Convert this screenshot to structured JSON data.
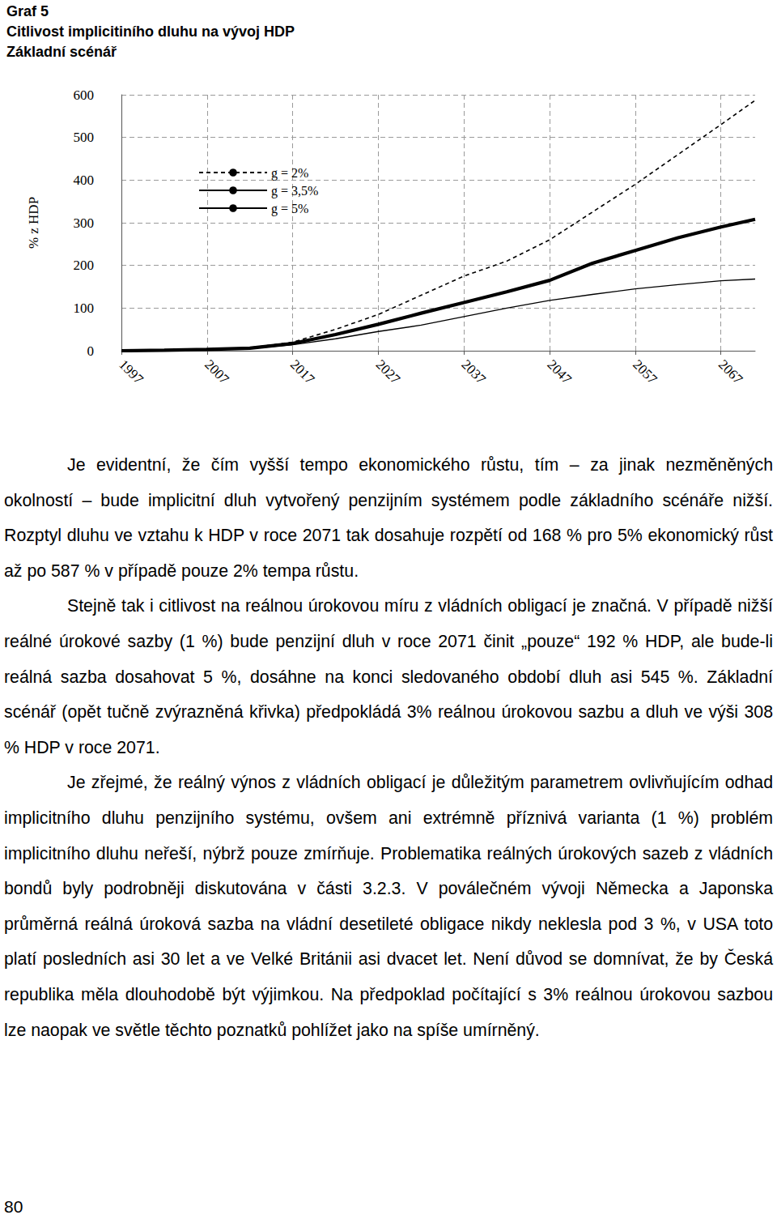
{
  "header": {
    "lines": [
      "Graf 5",
      "Citlivost implicitiního dluhu na vývoj HDP",
      "Základní scénář"
    ]
  },
  "chart_data": {
    "type": "line",
    "y_label": "% z HDP",
    "x": [
      1997,
      2002,
      2007,
      2012,
      2017,
      2022,
      2027,
      2032,
      2037,
      2042,
      2047,
      2052,
      2057,
      2062,
      2067,
      2071
    ],
    "series": [
      {
        "name": "g = 2%",
        "color": "#000000",
        "line_style": "dashed",
        "marker": "none",
        "values": [
          0,
          1,
          3,
          7,
          20,
          50,
          85,
          130,
          175,
          210,
          260,
          325,
          390,
          460,
          530,
          587
        ]
      },
      {
        "name": "g = 3,5%",
        "color": "#000000",
        "line_style": "solid",
        "marker": "none",
        "values": [
          0,
          1,
          3,
          6,
          17,
          38,
          62,
          88,
          113,
          138,
          165,
          205,
          235,
          265,
          290,
          308
        ]
      },
      {
        "name": "g = 5%",
        "color": "#000000",
        "line_style": "solid",
        "marker": "none",
        "values": [
          0,
          1,
          3,
          5,
          14,
          28,
          45,
          60,
          80,
          100,
          118,
          132,
          145,
          155,
          164,
          168
        ]
      }
    ],
    "xlim": [
      1997,
      2071
    ],
    "xticks": [
      1997,
      2007,
      2017,
      2027,
      2037,
      2047,
      2057,
      2067
    ],
    "ylim": [
      0,
      600
    ],
    "yticks": [
      0,
      100,
      200,
      300,
      400,
      500,
      600
    ],
    "grid": true,
    "legend": "upper left"
  },
  "paragraphs": [
    "Je evidentní, že čím vyšší tempo ekonomického růstu, tím – za jinak nezměněných okolností – bude implicitní dluh vytvořený penzijním systémem podle základního scénáře nižší. Rozptyl dluhu ve vztahu k HDP v roce 2071 tak dosahuje rozpětí od 168 % pro 5% ekonomický růst až po 587 % v případě pouze 2% tempa růstu.",
    "Stejně tak i citlivost na reálnou úrokovou míru z vládních obligací je značná. V případě nižší reálné úrokové sazby (1 %) bude penzijní dluh v roce 2071 činit „pouze“ 192 % HDP, ale bude-li reálná sazba dosahovat 5 %, dosáhne na konci sledovaného období dluh asi 545 %. Základní scénář (opět tučně zvýrazněná křivka) předpokládá 3% reálnou úrokovou sazbu a dluh ve výši 308 % HDP v roce 2071.",
    "Je zřejmé, že reálný výnos z vládních obligací je důležitým parametrem ovlivňujícím odhad implicitního dluhu penzijního systému, ovšem ani extrémně příznivá varianta (1 %) problém implicitního dluhu neřeší, nýbrž pouze zmírňuje. Problematika reálných úrokových sazeb z vládních bondů byly podrobněji diskutována v části 3.2.3. V poválečném vývoji Německa a Japonska průměrná reálná úroková sazba na vládní desetileté obligace nikdy neklesla pod 3 %, v USA toto platí posledních asi 30 let a ve Velké Británii asi dvacet let. Není důvod se domnívat, že by Česká republika měla dlouhodobě být výjimkou. Na předpoklad počítající s 3% reálnou úrokovou sazbou lze naopak ve světle těchto poznatků pohlížet jako na spíše umírněný."
  ],
  "page_number": "80"
}
